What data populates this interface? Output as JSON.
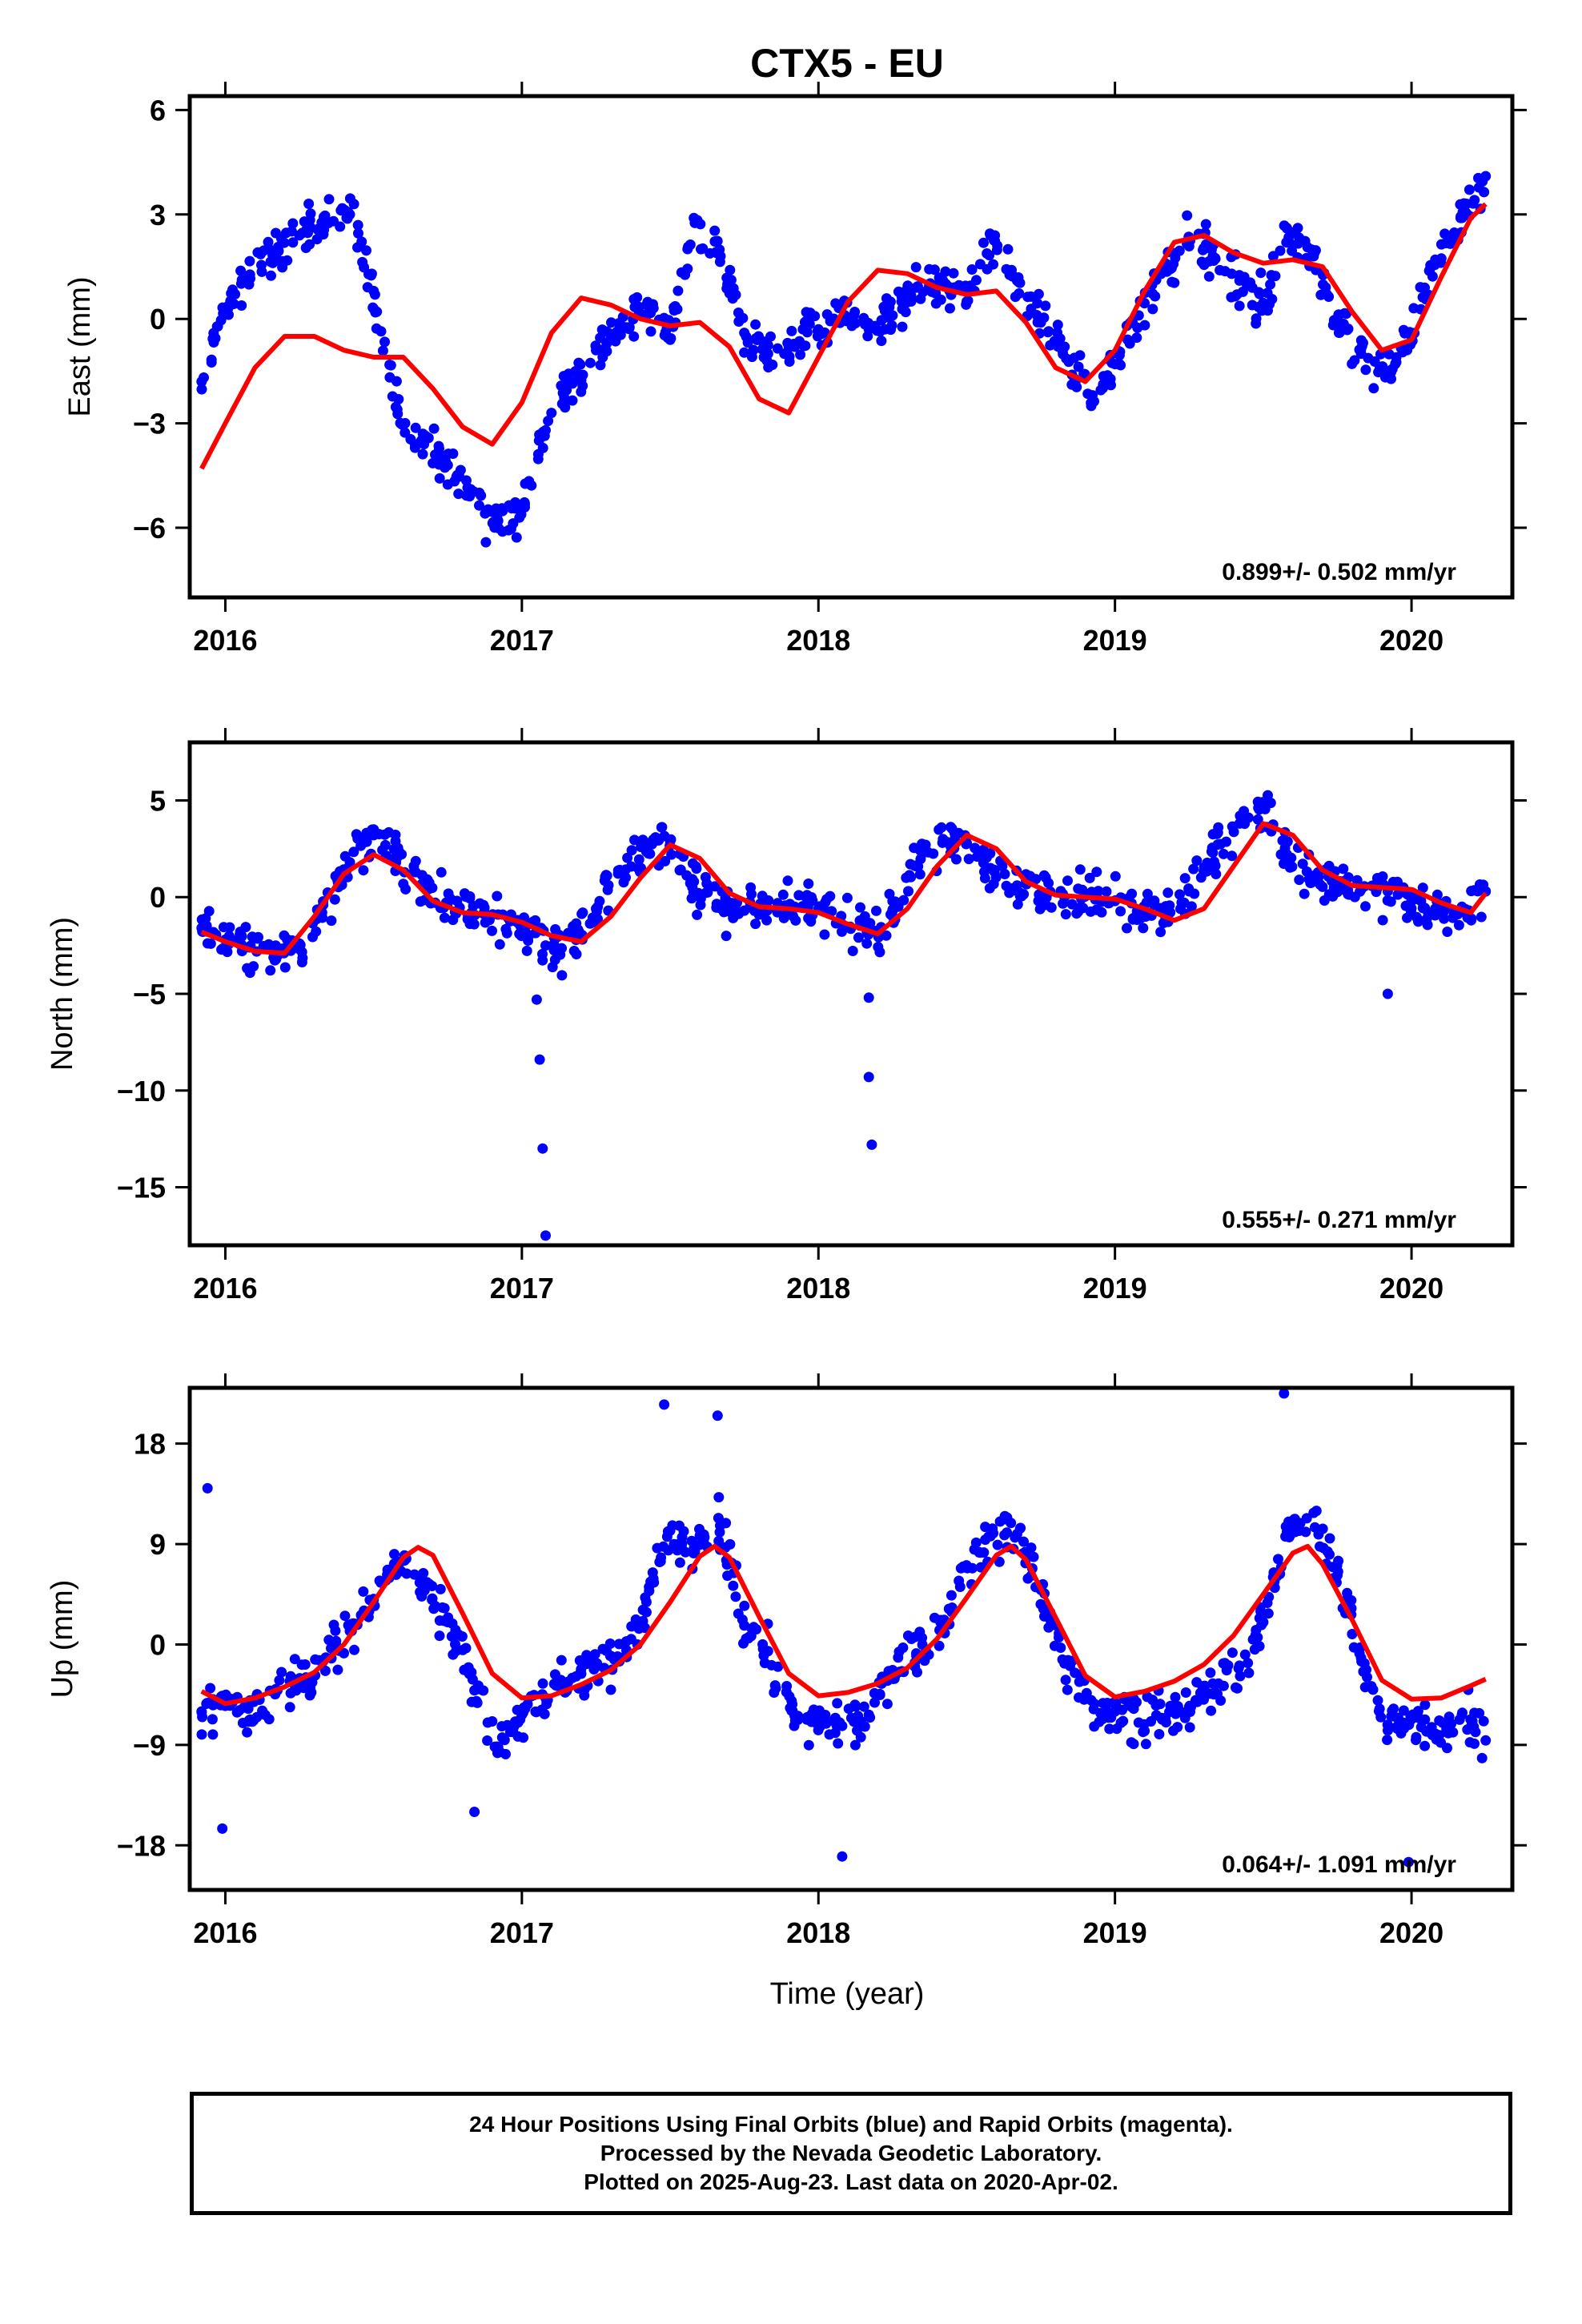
{
  "title": "CTX5 - EU",
  "xlabel": "Time (year)",
  "footer": {
    "line1": "24 Hour Positions Using Final Orbits (blue) and Rapid Orbits (magenta).",
    "line2": "Processed by the Nevada Geodetic Laboratory.",
    "line3": "Plotted on 2025-Aug-23. Last data on 2020-Apr-02."
  },
  "colors": {
    "points": "#0000ff",
    "model": "#ff0000",
    "axis": "#000000"
  },
  "chart_data": [
    {
      "type": "scatter",
      "component": "East",
      "ylabel": "East (mm)",
      "xlim": [
        2015.88,
        2020.34
      ],
      "ylim": [
        -8.0,
        6.4
      ],
      "xticks": [
        2016,
        2017,
        2018,
        2019,
        2020
      ],
      "yticks": [
        6,
        3,
        0,
        -3,
        -6
      ],
      "ytick_labels": [
        "6",
        "3",
        "0",
        "−3",
        "−6"
      ],
      "rate_label": "0.899+/- 0.502 mm/yr",
      "series": [
        {
          "name": "24 Hour Positions Using Final Orbits (blue)",
          "kind": "points",
          "x": [
            2015.92,
            2016.0,
            2016.08,
            2016.17,
            2016.25,
            2016.33,
            2016.42,
            2016.5,
            2016.58,
            2016.67,
            2016.75,
            2016.83,
            2016.92,
            2017.0,
            2017.08,
            2017.17,
            2017.25,
            2017.33,
            2017.42,
            2017.5,
            2017.58,
            2017.67,
            2017.75,
            2017.83,
            2017.92,
            2018.0,
            2018.08,
            2018.17,
            2018.25,
            2018.33,
            2018.42,
            2018.5,
            2018.58,
            2018.67,
            2018.75,
            2018.83,
            2018.92,
            2019.0,
            2019.08,
            2019.17,
            2019.25,
            2019.33,
            2019.42,
            2019.5,
            2019.58,
            2019.67,
            2019.75,
            2019.83,
            2019.92,
            2020.0,
            2020.08,
            2020.17,
            2020.25
          ],
          "y": [
            -1.8,
            0.3,
            1.2,
            1.9,
            2.4,
            2.8,
            3.0,
            0.8,
            -2.6,
            -3.6,
            -4.2,
            -5.0,
            -5.8,
            -5.4,
            -3.2,
            -1.8,
            -0.9,
            -0.3,
            0.4,
            -0.6,
            2.9,
            1.8,
            -0.4,
            -1.0,
            -0.8,
            -0.3,
            0.0,
            -0.3,
            0.1,
            0.9,
            1.1,
            0.5,
            2.4,
            1.1,
            -0.1,
            -0.8,
            -2.5,
            -1.3,
            0.1,
            1.6,
            2.3,
            1.8,
            1.1,
            0.4,
            2.6,
            1.8,
            -0.2,
            -1.0,
            -1.5,
            -0.5,
            1.7,
            2.9,
            4.1
          ]
        },
        {
          "name": "",
          "kind": "model",
          "x": [
            2015.92,
            2016.0,
            2016.1,
            2016.2,
            2016.3,
            2016.4,
            2016.5,
            2016.6,
            2016.7,
            2016.8,
            2016.9,
            2017.0,
            2017.1,
            2017.2,
            2017.3,
            2017.4,
            2017.5,
            2017.6,
            2017.7,
            2017.8,
            2017.9,
            2018.0,
            2018.1,
            2018.2,
            2018.3,
            2018.4,
            2018.5,
            2018.6,
            2018.7,
            2018.8,
            2018.9,
            2019.0,
            2019.1,
            2019.2,
            2019.3,
            2019.4,
            2019.5,
            2019.6,
            2019.7,
            2019.8,
            2019.9,
            2020.0,
            2020.1,
            2020.2,
            2020.25
          ],
          "y": [
            -4.3,
            -3.0,
            -1.4,
            -0.5,
            -0.5,
            -0.9,
            -1.1,
            -1.1,
            -2.0,
            -3.1,
            -3.6,
            -2.4,
            -0.4,
            0.6,
            0.4,
            0.0,
            -0.2,
            -0.1,
            -0.8,
            -2.3,
            -2.7,
            -1.1,
            0.5,
            1.4,
            1.3,
            0.9,
            0.7,
            0.8,
            -0.1,
            -1.4,
            -1.8,
            -0.9,
            0.8,
            2.2,
            2.4,
            1.9,
            1.6,
            1.7,
            1.5,
            0.2,
            -0.9,
            -0.6,
            1.2,
            2.9,
            3.3
          ]
        }
      ]
    },
    {
      "type": "scatter",
      "component": "North",
      "ylabel": "North (mm)",
      "xlim": [
        2015.88,
        2020.34
      ],
      "ylim": [
        -18.0,
        8.0
      ],
      "xticks": [
        2016,
        2017,
        2018,
        2019,
        2020
      ],
      "yticks": [
        5,
        0,
        -5,
        -10,
        -15
      ],
      "ytick_labels": [
        "5",
        "0",
        "−5",
        "−10",
        "−15"
      ],
      "rate_label": "0.555+/- 0.271 mm/yr",
      "series": [
        {
          "name": "24 Hour Positions Using Final Orbits (blue)",
          "kind": "points",
          "x": [
            2015.92,
            2016.0,
            2016.08,
            2016.17,
            2016.25,
            2016.33,
            2016.42,
            2016.5,
            2016.58,
            2016.67,
            2016.75,
            2016.83,
            2016.92,
            2017.0,
            2017.08,
            2017.17,
            2017.25,
            2017.33,
            2017.42,
            2017.5,
            2017.58,
            2017.67,
            2017.75,
            2017.83,
            2017.92,
            2018.0,
            2018.08,
            2018.17,
            2018.25,
            2018.33,
            2018.42,
            2018.5,
            2018.58,
            2018.67,
            2018.75,
            2018.83,
            2018.92,
            2019.0,
            2019.08,
            2019.17,
            2019.25,
            2019.33,
            2019.42,
            2019.5,
            2019.58,
            2019.67,
            2019.75,
            2019.83,
            2019.92,
            2020.0,
            2020.08,
            2020.17,
            2020.25,
            2017.05,
            2017.06,
            2017.07,
            2017.08,
            2018.17,
            2018.17,
            2018.18,
            2019.92
          ],
          "y": [
            -1.6,
            -2.2,
            -2.6,
            -2.9,
            -2.4,
            -0.4,
            1.8,
            3.2,
            2.1,
            0.7,
            -0.3,
            -0.8,
            -0.9,
            -1.6,
            -2.5,
            -2.0,
            -0.6,
            1.4,
            2.8,
            2.9,
            0.8,
            -0.4,
            -0.7,
            -0.6,
            -0.5,
            -0.6,
            -1.4,
            -1.9,
            -0.7,
            1.6,
            3.0,
            2.8,
            1.5,
            0.6,
            0.2,
            0.0,
            0.1,
            -0.2,
            -0.8,
            -1.0,
            0.3,
            2.3,
            3.8,
            4.6,
            2.2,
            1.1,
            0.6,
            0.4,
            0.3,
            -0.2,
            -0.6,
            -0.5,
            0.3,
            -5.3,
            -8.4,
            -13.0,
            -17.5,
            -5.2,
            -9.3,
            -12.8,
            -5.0
          ]
        },
        {
          "name": "",
          "kind": "model",
          "x": [
            2015.92,
            2016.0,
            2016.1,
            2016.2,
            2016.3,
            2016.4,
            2016.5,
            2016.6,
            2016.7,
            2016.8,
            2016.9,
            2017.0,
            2017.1,
            2017.2,
            2017.3,
            2017.4,
            2017.5,
            2017.6,
            2017.7,
            2017.8,
            2017.9,
            2018.0,
            2018.1,
            2018.2,
            2018.3,
            2018.4,
            2018.5,
            2018.6,
            2018.7,
            2018.8,
            2018.9,
            2019.0,
            2019.1,
            2019.2,
            2019.3,
            2019.4,
            2019.5,
            2019.6,
            2019.7,
            2019.8,
            2019.9,
            2020.0,
            2020.1,
            2020.2,
            2020.25
          ],
          "y": [
            -1.8,
            -2.3,
            -2.8,
            -2.9,
            -1.0,
            1.2,
            2.2,
            1.4,
            -0.2,
            -0.8,
            -0.9,
            -1.3,
            -2.0,
            -2.3,
            -1.0,
            1.0,
            2.7,
            2.0,
            0.2,
            -0.5,
            -0.6,
            -0.8,
            -1.4,
            -1.9,
            -0.6,
            1.6,
            3.2,
            2.5,
            0.8,
            0.1,
            0.0,
            -0.1,
            -0.6,
            -1.2,
            -0.6,
            1.6,
            3.8,
            3.2,
            1.4,
            0.6,
            0.5,
            0.4,
            -0.3,
            -0.8,
            0.2
          ]
        }
      ]
    },
    {
      "type": "scatter",
      "component": "Up",
      "ylabel": "Up (mm)",
      "xlim": [
        2015.88,
        2020.34
      ],
      "ylim": [
        -22.0,
        23.0
      ],
      "xticks": [
        2016,
        2017,
        2018,
        2019,
        2020
      ],
      "yticks": [
        18,
        9,
        0,
        -9,
        -18
      ],
      "ytick_labels": [
        "18",
        "9",
        "0",
        "−9",
        "−18"
      ],
      "rate_label": "0.064+/- 1.091 mm/yr",
      "series": [
        {
          "name": "24 Hour Positions Using Final Orbits (blue)",
          "kind": "points",
          "x": [
            2015.92,
            2016.0,
            2016.08,
            2016.17,
            2016.25,
            2016.33,
            2016.42,
            2016.5,
            2016.58,
            2016.67,
            2016.75,
            2016.83,
            2016.92,
            2017.0,
            2017.08,
            2017.17,
            2017.25,
            2017.33,
            2017.42,
            2017.5,
            2017.58,
            2017.67,
            2017.75,
            2017.83,
            2017.92,
            2018.0,
            2018.08,
            2018.17,
            2018.25,
            2018.33,
            2018.42,
            2018.5,
            2018.58,
            2018.67,
            2018.75,
            2018.83,
            2018.92,
            2019.0,
            2019.08,
            2019.17,
            2019.25,
            2019.33,
            2019.42,
            2019.5,
            2019.58,
            2019.67,
            2019.75,
            2019.83,
            2019.92,
            2020.0,
            2020.08,
            2020.17,
            2020.25,
            2015.94,
            2015.99,
            2016.84,
            2017.48,
            2017.66,
            2018.08,
            2019.57,
            2019.99
          ],
          "y": [
            -6.0,
            -5.5,
            -6.8,
            -4.0,
            -3.2,
            -1.5,
            1.2,
            4.0,
            7.4,
            5.6,
            2.0,
            -2.5,
            -9.2,
            -6.3,
            -4.8,
            -3.0,
            -2.0,
            -1.2,
            3.8,
            10.2,
            8.6,
            10.7,
            1.7,
            -0.6,
            -6.4,
            -7.2,
            -7.3,
            -6.3,
            -2.3,
            -0.8,
            1.5,
            7.0,
            9.7,
            9.9,
            4.9,
            -1.7,
            -5.0,
            -6.0,
            -7.0,
            -6.6,
            -5.6,
            -3.5,
            -1.9,
            2.0,
            10.1,
            11.8,
            6.2,
            -1.2,
            -7.7,
            -6.7,
            -8.0,
            -6.3,
            -8.6,
            14.0,
            -16.5,
            -15.0,
            21.5,
            20.5,
            -19.0,
            22.5,
            -19.5
          ]
        },
        {
          "name": "",
          "kind": "model",
          "x": [
            2015.92,
            2016.0,
            2016.1,
            2016.2,
            2016.3,
            2016.4,
            2016.5,
            2016.6,
            2016.65,
            2016.7,
            2016.8,
            2016.9,
            2017.0,
            2017.1,
            2017.2,
            2017.3,
            2017.4,
            2017.5,
            2017.6,
            2017.65,
            2017.7,
            2017.8,
            2017.9,
            2018.0,
            2018.1,
            2018.2,
            2018.3,
            2018.4,
            2018.5,
            2018.6,
            2018.65,
            2018.7,
            2018.8,
            2018.9,
            2019.0,
            2019.1,
            2019.2,
            2019.3,
            2019.4,
            2019.5,
            2019.6,
            2019.65,
            2019.7,
            2019.8,
            2019.9,
            2020.0,
            2020.1,
            2020.2,
            2020.25
          ],
          "y": [
            -4.2,
            -5.3,
            -4.8,
            -3.8,
            -2.5,
            0.0,
            3.8,
            7.8,
            8.7,
            8.0,
            2.8,
            -2.6,
            -4.8,
            -4.6,
            -3.6,
            -2.3,
            0.0,
            3.8,
            7.9,
            8.8,
            7.8,
            2.5,
            -2.6,
            -4.6,
            -4.3,
            -3.5,
            -2.1,
            0.5,
            4.2,
            8.0,
            8.8,
            7.6,
            2.4,
            -2.8,
            -4.7,
            -4.2,
            -3.3,
            -1.8,
            0.8,
            4.5,
            8.2,
            8.8,
            7.2,
            2.2,
            -3.2,
            -4.9,
            -4.8,
            -3.7,
            -3.1
          ]
        }
      ]
    }
  ]
}
